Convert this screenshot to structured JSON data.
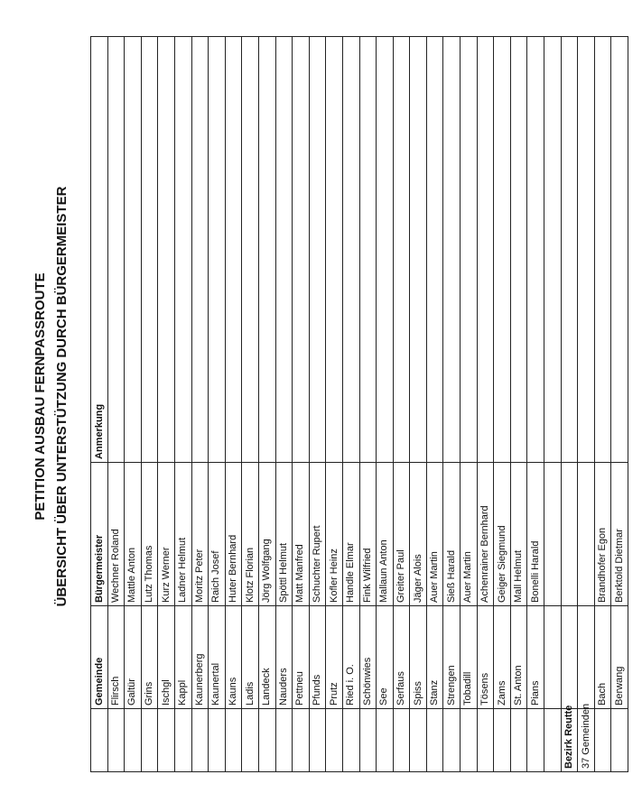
{
  "title_line1": "PETITION AUSBAU FERNPASSROUTE",
  "title_line2": "ÜBERSICHT ÜBER UNTERSTÜTZUNG DURCH BÜRGERMEISTER",
  "headers": [
    "",
    "Gemeinde",
    "Bürgermeister",
    "Anmerkung"
  ],
  "rows": [
    [
      "",
      "Flirsch",
      "Wechner Roland",
      ""
    ],
    [
      "",
      "Galtür",
      "Mattle Anton",
      ""
    ],
    [
      "",
      "Grins",
      "Lutz Thomas",
      ""
    ],
    [
      "",
      "Ischgl",
      "Kurz Werner",
      ""
    ],
    [
      "",
      "Kappl",
      "Ladner Helmut",
      ""
    ],
    [
      "",
      "Kaunerberg",
      "Moritz Peter",
      ""
    ],
    [
      "",
      "Kaunertal",
      "Raich Josef",
      ""
    ],
    [
      "",
      "Kauns",
      "Huter Bernhard",
      ""
    ],
    [
      "",
      "Ladis",
      "Klotz Florian",
      ""
    ],
    [
      "",
      "Landeck",
      "Jörg Wolfgang",
      ""
    ],
    [
      "",
      "Nauders",
      "Spöttl Helmut",
      ""
    ],
    [
      "",
      "Pettneu",
      "Matt Manfred",
      ""
    ],
    [
      "",
      "Pfunds",
      "Schuchter Rupert",
      ""
    ],
    [
      "",
      "Prutz",
      "Kofler Heinz",
      ""
    ],
    [
      "",
      "Ried i. O.",
      "Handle Elmar",
      ""
    ],
    [
      "",
      "Schönwies",
      "Fink Wilfried",
      ""
    ],
    [
      "",
      "See",
      "Mallaun Anton",
      ""
    ],
    [
      "",
      "Serfaus",
      "Greiter Paul",
      ""
    ],
    [
      "",
      "Spiss",
      "Jäger Alois",
      ""
    ],
    [
      "",
      "Stanz",
      "Auer Martin",
      ""
    ],
    [
      "",
      "Strengen",
      "Sieß Harald",
      ""
    ],
    [
      "",
      "Tobadill",
      "Auer Martin",
      ""
    ],
    [
      "",
      "Tösens",
      "Achenrainer Bernhard",
      ""
    ],
    [
      "",
      "Zams",
      "Geiger Siegmund",
      ""
    ],
    [
      "",
      "St. Anton",
      "Mall Helmut",
      ""
    ],
    [
      "",
      "Pians",
      "Bonelli Harald",
      ""
    ],
    [
      "",
      "",
      "",
      ""
    ],
    [
      "Bezirk Reutte",
      "",
      "",
      ""
    ],
    [
      "37 Gemeinden",
      "",
      "",
      ""
    ],
    [
      "",
      "Bach",
      "Brandhofer Egon",
      ""
    ],
    [
      "",
      "Berwang",
      "Berktold Dietmar",
      ""
    ]
  ]
}
